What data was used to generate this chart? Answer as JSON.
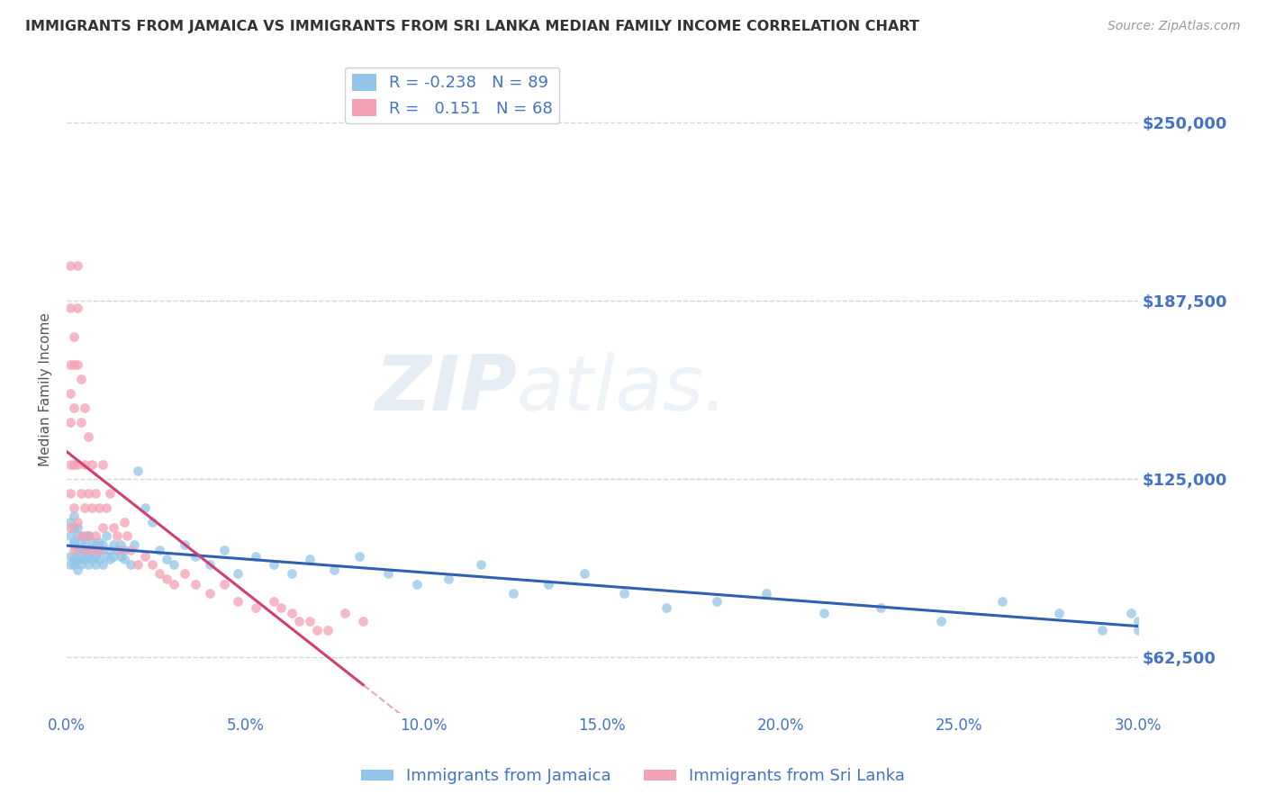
{
  "title": "IMMIGRANTS FROM JAMAICA VS IMMIGRANTS FROM SRI LANKA MEDIAN FAMILY INCOME CORRELATION CHART",
  "source": "Source: ZipAtlas.com",
  "ylabel": "Median Family Income",
  "xlim": [
    0.0,
    0.3
  ],
  "ylim": [
    43000,
    270000
  ],
  "yticks": [
    62500,
    125000,
    187500,
    250000
  ],
  "ytick_labels": [
    "$62,500",
    "$125,000",
    "$187,500",
    "$250,000"
  ],
  "xticks": [
    0.0,
    0.05,
    0.1,
    0.15,
    0.2,
    0.25,
    0.3
  ],
  "xtick_labels": [
    "0.0%",
    "5.0%",
    "10.0%",
    "15.0%",
    "20.0%",
    "25.0%",
    "30.0%"
  ],
  "watermark": "ZIPatlas.",
  "legend_R_jamaica": "-0.238",
  "legend_N_jamaica": "89",
  "legend_R_srilanka": "0.151",
  "legend_N_srilanka": "68",
  "color_jamaica": "#92C5E8",
  "color_srilanka": "#F4A0B5",
  "line_color_jamaica": "#3060B0",
  "line_color_srilanka": "#D04070",
  "dashed_line_color": "#E08098",
  "title_color": "#333333",
  "axis_color": "#4472C4",
  "background_color": "#FFFFFF",
  "jamaica_x": [
    0.001,
    0.001,
    0.001,
    0.001,
    0.002,
    0.002,
    0.002,
    0.002,
    0.002,
    0.002,
    0.003,
    0.003,
    0.003,
    0.003,
    0.003,
    0.004,
    0.004,
    0.004,
    0.004,
    0.005,
    0.005,
    0.005,
    0.005,
    0.006,
    0.006,
    0.006,
    0.006,
    0.007,
    0.007,
    0.007,
    0.008,
    0.008,
    0.008,
    0.009,
    0.009,
    0.009,
    0.01,
    0.01,
    0.01,
    0.011,
    0.011,
    0.012,
    0.012,
    0.013,
    0.013,
    0.014,
    0.015,
    0.015,
    0.016,
    0.016,
    0.018,
    0.019,
    0.02,
    0.022,
    0.024,
    0.026,
    0.028,
    0.03,
    0.033,
    0.036,
    0.04,
    0.044,
    0.048,
    0.053,
    0.058,
    0.063,
    0.068,
    0.075,
    0.082,
    0.09,
    0.098,
    0.107,
    0.116,
    0.125,
    0.135,
    0.145,
    0.156,
    0.168,
    0.182,
    0.196,
    0.212,
    0.228,
    0.245,
    0.262,
    0.278,
    0.29,
    0.298,
    0.3,
    0.3
  ],
  "jamaica_y": [
    105000,
    98000,
    110000,
    95000,
    102000,
    108000,
    97000,
    103000,
    95000,
    112000,
    100000,
    97000,
    105000,
    93000,
    108000,
    100000,
    97000,
    103000,
    95000,
    102000,
    97000,
    105000,
    100000,
    98000,
    105000,
    100000,
    95000,
    100000,
    97000,
    103000,
    98000,
    102000,
    95000,
    100000,
    97000,
    103000,
    100000,
    95000,
    102000,
    98000,
    105000,
    100000,
    97000,
    102000,
    98000,
    100000,
    98000,
    102000,
    97000,
    100000,
    95000,
    102000,
    128000,
    115000,
    110000,
    100000,
    97000,
    95000,
    102000,
    98000,
    95000,
    100000,
    92000,
    98000,
    95000,
    92000,
    97000,
    93000,
    98000,
    92000,
    88000,
    90000,
    95000,
    85000,
    88000,
    92000,
    85000,
    80000,
    82000,
    85000,
    78000,
    80000,
    75000,
    82000,
    78000,
    72000,
    78000,
    75000,
    72000
  ],
  "srilanka_x": [
    0.001,
    0.001,
    0.001,
    0.001,
    0.001,
    0.001,
    0.001,
    0.001,
    0.002,
    0.002,
    0.002,
    0.002,
    0.002,
    0.002,
    0.003,
    0.003,
    0.003,
    0.003,
    0.003,
    0.004,
    0.004,
    0.004,
    0.004,
    0.005,
    0.005,
    0.005,
    0.005,
    0.006,
    0.006,
    0.006,
    0.007,
    0.007,
    0.007,
    0.008,
    0.008,
    0.009,
    0.009,
    0.01,
    0.01,
    0.011,
    0.012,
    0.013,
    0.014,
    0.015,
    0.016,
    0.017,
    0.018,
    0.02,
    0.022,
    0.024,
    0.026,
    0.028,
    0.03,
    0.033,
    0.036,
    0.04,
    0.044,
    0.048,
    0.053,
    0.058,
    0.063,
    0.068,
    0.073,
    0.078,
    0.083,
    0.06,
    0.065,
    0.07
  ],
  "srilanka_y": [
    200000,
    185000,
    165000,
    155000,
    145000,
    130000,
    120000,
    108000,
    175000,
    165000,
    150000,
    130000,
    115000,
    100000,
    200000,
    185000,
    165000,
    130000,
    110000,
    160000,
    145000,
    120000,
    105000,
    150000,
    130000,
    115000,
    100000,
    140000,
    120000,
    105000,
    130000,
    115000,
    100000,
    120000,
    105000,
    115000,
    100000,
    130000,
    108000,
    115000,
    120000,
    108000,
    105000,
    100000,
    110000,
    105000,
    100000,
    95000,
    98000,
    95000,
    92000,
    90000,
    88000,
    92000,
    88000,
    85000,
    88000,
    82000,
    80000,
    82000,
    78000,
    75000,
    72000,
    78000,
    75000,
    80000,
    75000,
    72000
  ]
}
